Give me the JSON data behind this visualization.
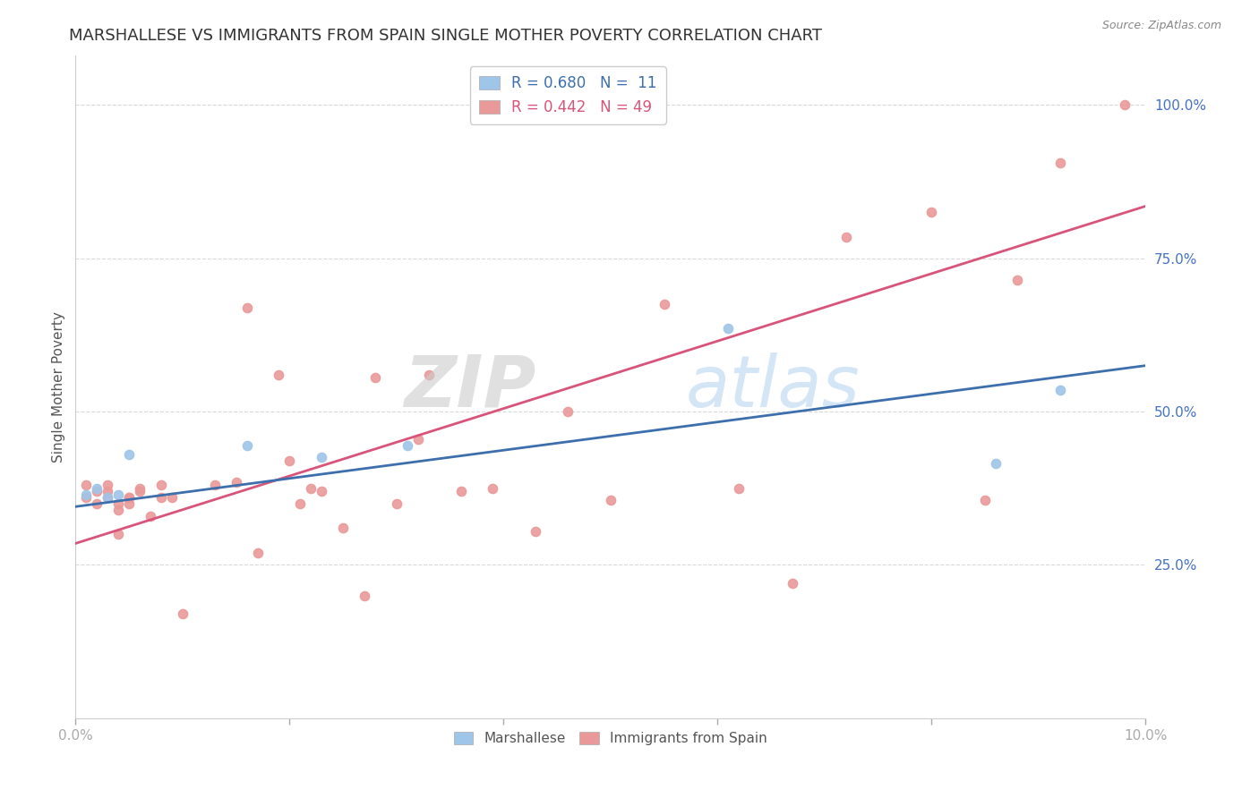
{
  "title": "MARSHALLESE VS IMMIGRANTS FROM SPAIN SINGLE MOTHER POVERTY CORRELATION CHART",
  "source": "Source: ZipAtlas.com",
  "ylabel": "Single Mother Poverty",
  "xlim": [
    0.0,
    0.1
  ],
  "ylim": [
    0.0,
    1.08
  ],
  "legend1_label": "R = 0.680   N =  11",
  "legend2_label": "R = 0.442   N = 49",
  "blue_scatter_x": [
    0.001,
    0.002,
    0.003,
    0.004,
    0.005,
    0.016,
    0.023,
    0.031,
    0.061,
    0.086,
    0.092
  ],
  "blue_scatter_y": [
    0.365,
    0.375,
    0.36,
    0.365,
    0.43,
    0.445,
    0.425,
    0.445,
    0.635,
    0.415,
    0.535
  ],
  "blue_line_x": [
    0.0,
    0.1
  ],
  "blue_line_y": [
    0.345,
    0.575
  ],
  "pink_scatter_x": [
    0.001,
    0.001,
    0.002,
    0.002,
    0.003,
    0.003,
    0.003,
    0.004,
    0.004,
    0.004,
    0.005,
    0.005,
    0.005,
    0.006,
    0.006,
    0.007,
    0.008,
    0.008,
    0.009,
    0.01,
    0.013,
    0.015,
    0.016,
    0.017,
    0.019,
    0.02,
    0.021,
    0.022,
    0.023,
    0.025,
    0.027,
    0.028,
    0.03,
    0.032,
    0.033,
    0.036,
    0.039,
    0.043,
    0.046,
    0.05,
    0.055,
    0.062,
    0.067,
    0.072,
    0.08,
    0.085,
    0.088,
    0.092,
    0.098
  ],
  "pink_scatter_y": [
    0.36,
    0.38,
    0.35,
    0.37,
    0.36,
    0.37,
    0.38,
    0.3,
    0.34,
    0.35,
    0.35,
    0.36,
    0.36,
    0.37,
    0.375,
    0.33,
    0.36,
    0.38,
    0.36,
    0.17,
    0.38,
    0.385,
    0.67,
    0.27,
    0.56,
    0.42,
    0.35,
    0.375,
    0.37,
    0.31,
    0.2,
    0.555,
    0.35,
    0.455,
    0.56,
    0.37,
    0.375,
    0.305,
    0.5,
    0.355,
    0.675,
    0.375,
    0.22,
    0.785,
    0.825,
    0.355,
    0.715,
    0.905,
    1.0
  ],
  "pink_line_x": [
    0.0,
    0.1
  ],
  "pink_line_y": [
    0.285,
    0.835
  ],
  "background_color": "#ffffff",
  "grid_color": "#d9d9d9",
  "axis_color": "#4472c4",
  "scatter_size": 55,
  "blue_scatter_color": "#9fc5e8",
  "pink_scatter_color": "#ea9999",
  "blue_line_color": "#3d6fad",
  "pink_line_color": "#d9547a",
  "title_fontsize": 13,
  "axis_label_fontsize": 11,
  "tick_fontsize": 11,
  "watermark_zip_color": "#cccccc",
  "watermark_atlas_color": "#aaccee"
}
